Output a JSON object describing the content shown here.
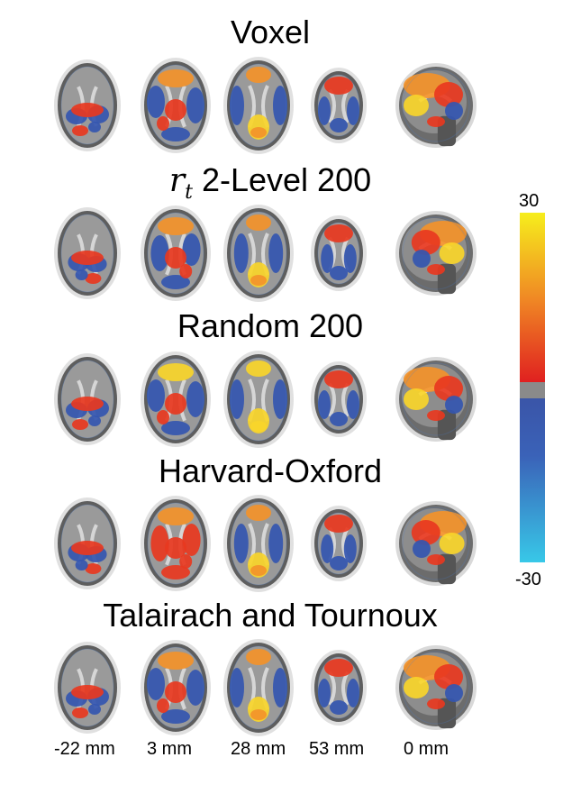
{
  "rows": [
    {
      "title": "Voxel",
      "math": ""
    },
    {
      "title": "2-Level 200",
      "math": "r",
      "math_sub": "t"
    },
    {
      "title": "Random 200",
      "math": ""
    },
    {
      "title": "Harvard-Oxford",
      "math": ""
    },
    {
      "title": "Talairach and Tournoux",
      "math": ""
    }
  ],
  "slice_labels": [
    "-22 mm",
    "3 mm",
    "28 mm",
    "53 mm",
    "0 mm"
  ],
  "colorbar": {
    "max_label": "30",
    "min_label": "-30",
    "colors": {
      "high": "#f6ee1c",
      "mid": "#f08a24",
      "low_pos": "#e02020",
      "zero": "#8a8a8a",
      "low_neg": "#3a55a8",
      "neg": "#38c8e8"
    }
  }
}
